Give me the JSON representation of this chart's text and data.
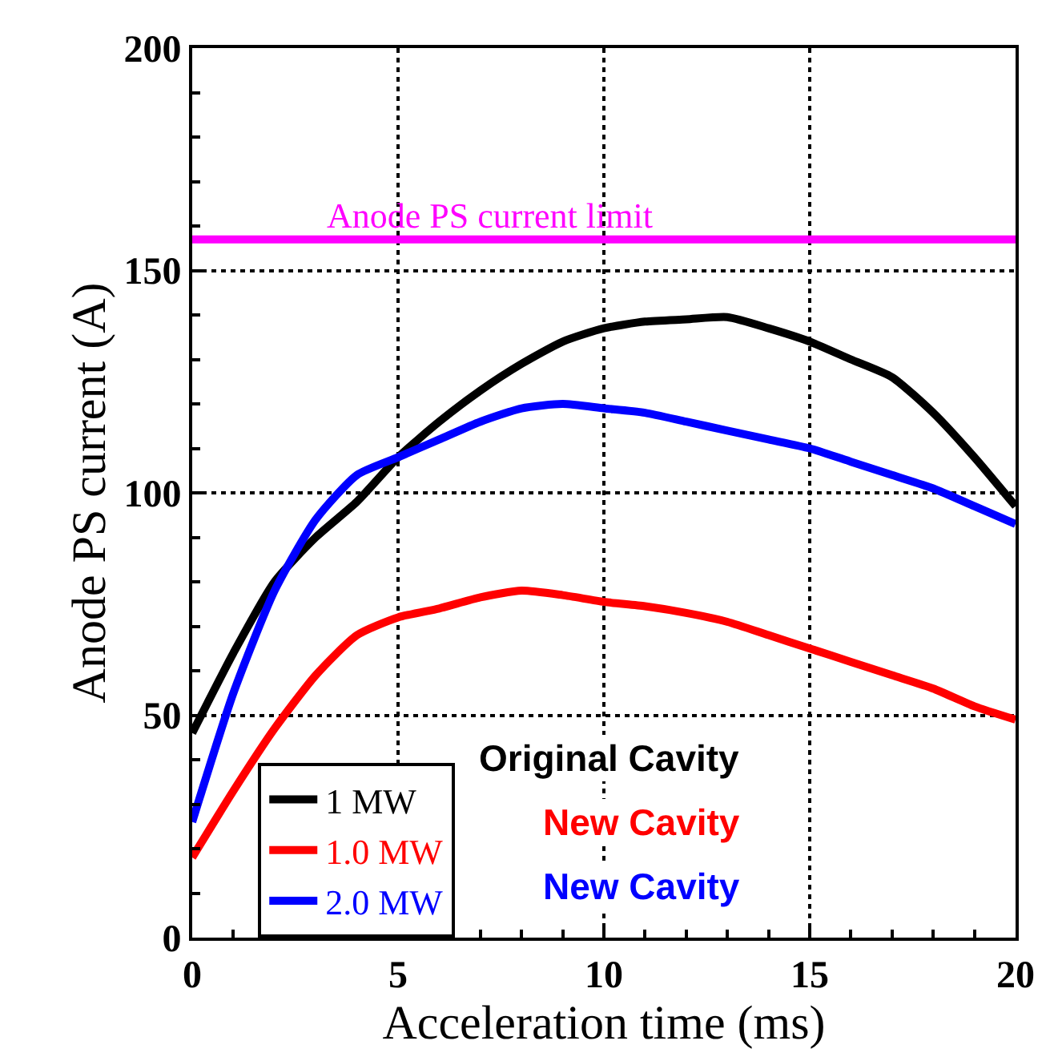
{
  "chart_data": {
    "type": "line",
    "xlabel": "Acceleration time (ms)",
    "ylabel": "Anode PS current (A)",
    "x": [
      0,
      1,
      2,
      3,
      4,
      5,
      6,
      7,
      8,
      9,
      10,
      11,
      12,
      13,
      14,
      15,
      16,
      17,
      18,
      19,
      20
    ],
    "series": [
      {
        "name": "1 MW",
        "color": "#000000",
        "values": [
          46,
          64,
          80,
          90,
          98,
          108,
          116,
          123,
          129,
          134,
          137,
          138.5,
          139,
          139.5,
          137,
          134,
          130,
          126,
          118,
          108,
          97
        ]
      },
      {
        "name": "1.0 MW",
        "color": "#ff0000",
        "values": [
          18,
          33,
          47,
          59,
          68,
          72,
          74,
          76.5,
          78,
          77,
          75.5,
          74.5,
          73,
          71,
          68,
          65,
          62,
          59,
          56,
          52,
          49
        ]
      },
      {
        "name": "2.0 MW",
        "color": "#0000ff",
        "values": [
          26,
          55,
          78,
          94,
          104,
          108,
          112,
          116,
          119,
          120,
          119,
          118,
          116,
          114,
          112,
          110,
          107,
          104,
          101,
          97,
          93
        ]
      }
    ],
    "annotations": [
      "Original Cavity",
      "New Cavity",
      "New Cavity"
    ],
    "ref_lines": [
      {
        "axis": "y",
        "value": 157,
        "label": "Anode PS current limit",
        "color": "#ff00ff"
      }
    ],
    "xlim": [
      0,
      20
    ],
    "xticks": [
      0,
      5,
      10,
      15,
      20
    ],
    "ylim": [
      0,
      200
    ],
    "yticks": [
      0,
      50,
      100,
      150,
      200
    ],
    "grid": true,
    "legend": "bottom left",
    "marker": "none",
    "line_style": "solid"
  }
}
